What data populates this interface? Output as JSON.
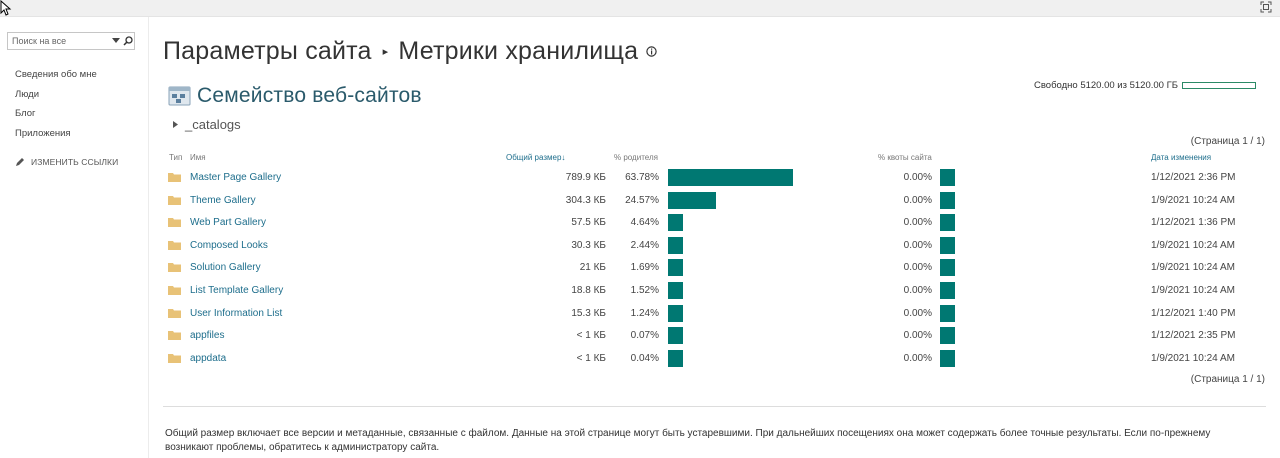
{
  "search": {
    "placeholder": "Поиск на все"
  },
  "quicklaunch": {
    "items": [
      {
        "label": "Сведения обо мне"
      },
      {
        "label": "Люди"
      },
      {
        "label": "Блог"
      },
      {
        "label": "Приложения"
      }
    ],
    "edit_links_label": "ИЗМЕНИТЬ ССЫЛКИ"
  },
  "page": {
    "breadcrumb_parent": "Параметры сайта",
    "breadcrumb_separator": "▸",
    "title": "Метрики хранилища"
  },
  "site_family": {
    "label": "Семейство веб-сайтов"
  },
  "catalogs": {
    "label": "_catalogs"
  },
  "quota": {
    "text": "Свободно 5120.00 из 5120.00 ГБ",
    "used_fraction": 0.0
  },
  "pager": {
    "top": "(Страница 1 / 1)",
    "bottom": "(Страница 1 / 1)"
  },
  "table": {
    "headers": {
      "type": "Тип",
      "name": "Имя",
      "size": "Общий размер",
      "sort_arrow": "↓",
      "parent_pct": "% родителя",
      "quota_pct": "% квоты сайта",
      "modified": "Дата изменения"
    },
    "rows": [
      {
        "name": "Master Page Gallery",
        "size": "789.9 КБ",
        "parent_pct": "63.78%",
        "parent_value": 63.78,
        "quota_pct": "0.00%",
        "modified": "1/12/2021 2:36 PM"
      },
      {
        "name": "Theme Gallery",
        "size": "304.3 КБ",
        "parent_pct": "24.57%",
        "parent_value": 24.57,
        "quota_pct": "0.00%",
        "modified": "1/9/2021 10:24 AM"
      },
      {
        "name": "Web Part Gallery",
        "size": "57.5 КБ",
        "parent_pct": "4.64%",
        "parent_value": 4.64,
        "quota_pct": "0.00%",
        "modified": "1/12/2021 1:36 PM"
      },
      {
        "name": "Composed Looks",
        "size": "30.3 КБ",
        "parent_pct": "2.44%",
        "parent_value": 2.44,
        "quota_pct": "0.00%",
        "modified": "1/9/2021 10:24 AM"
      },
      {
        "name": "Solution Gallery",
        "size": "21 КБ",
        "parent_pct": "1.69%",
        "parent_value": 1.69,
        "quota_pct": "0.00%",
        "modified": "1/9/2021 10:24 AM"
      },
      {
        "name": "List Template Gallery",
        "size": "18.8 КБ",
        "parent_pct": "1.52%",
        "parent_value": 1.52,
        "quota_pct": "0.00%",
        "modified": "1/9/2021 10:24 AM"
      },
      {
        "name": "User Information List",
        "size": "15.3 КБ",
        "parent_pct": "1.24%",
        "parent_value": 1.24,
        "quota_pct": "0.00%",
        "modified": "1/12/2021 1:40 PM"
      },
      {
        "name": "appfiles",
        "size": "< 1 КБ",
        "parent_pct": "0.07%",
        "parent_value": 0.07,
        "quota_pct": "0.00%",
        "modified": "1/12/2021 2:35 PM"
      },
      {
        "name": "appdata",
        "size": "< 1 КБ",
        "parent_pct": "0.04%",
        "parent_value": 0.04,
        "quota_pct": "0.00%",
        "modified": "1/9/2021 10:24 AM"
      }
    ]
  },
  "footnote": "Общий размер включает все версии и метаданные, связанные с файлом. Данные на этой странице могут быть устаревшими. При дальнейших посещениях она может содержать более точные результаты. Если по-прежнему возникают проблемы, обратитесь к администратору сайта.",
  "colors": {
    "bar": "#007872",
    "link": "#1e6e8c",
    "quota_border": "#2b8a66",
    "folder": "#e8c277"
  },
  "icons": [
    "cursor-icon",
    "focus-icon",
    "dropdown-arrow-icon",
    "search-icon",
    "pencil-icon",
    "info-icon",
    "site-collection-icon",
    "expand-arrow-icon",
    "folder-icon"
  ]
}
